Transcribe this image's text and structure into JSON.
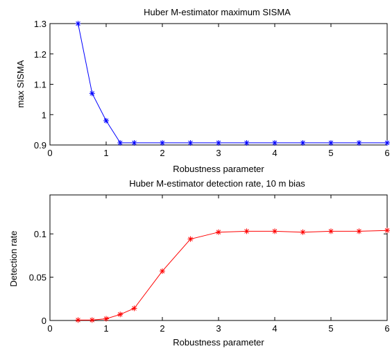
{
  "chart_data": [
    {
      "type": "line",
      "title": "Huber M-estimator maximum SISMA",
      "xlabel": "Robustness parameter",
      "ylabel": "max SISMA",
      "xlim": [
        0,
        6
      ],
      "ylim": [
        0.9,
        1.3
      ],
      "xticks": [
        0,
        1,
        2,
        3,
        4,
        5,
        6
      ],
      "yticks": [
        0.9,
        1.0,
        1.1,
        1.2,
        1.3
      ],
      "xtick_labels": [
        "0",
        "1",
        "2",
        "3",
        "4",
        "5",
        "6"
      ],
      "ytick_labels": [
        "0.9",
        "1",
        "1.1",
        "1.2",
        "1.3"
      ],
      "grid": false,
      "series": [
        {
          "color": "#0000ff",
          "marker": "asterisk",
          "x": [
            0.5,
            0.75,
            1.0,
            1.25,
            1.5,
            2.0,
            2.5,
            3.0,
            3.5,
            4.0,
            4.5,
            5.0,
            5.5,
            6.0
          ],
          "y": [
            1.3,
            1.07,
            0.98,
            0.907,
            0.907,
            0.907,
            0.907,
            0.907,
            0.907,
            0.907,
            0.907,
            0.907,
            0.907,
            0.907
          ]
        }
      ]
    },
    {
      "type": "line",
      "title": "Huber M-estimator detection rate, 10 m bias",
      "xlabel": "Robustness parameter",
      "ylabel": "Detection rate",
      "xlim": [
        0,
        6
      ],
      "ylim": [
        0,
        0.145
      ],
      "xticks": [
        0,
        1,
        2,
        3,
        4,
        5,
        6
      ],
      "yticks": [
        0,
        0.05,
        0.1
      ],
      "xtick_labels": [
        "0",
        "1",
        "2",
        "3",
        "4",
        "5",
        "6"
      ],
      "ytick_labels": [
        "0",
        "0.05",
        "0.1"
      ],
      "grid": false,
      "series": [
        {
          "color": "#ff0000",
          "marker": "asterisk",
          "x": [
            0.5,
            0.75,
            1.0,
            1.25,
            1.5,
            2.0,
            2.5,
            3.0,
            3.5,
            4.0,
            4.5,
            5.0,
            5.5,
            6.0
          ],
          "y": [
            0.0005,
            0.0005,
            0.002,
            0.007,
            0.014,
            0.057,
            0.094,
            0.102,
            0.103,
            0.103,
            0.102,
            0.103,
            0.103,
            0.104
          ]
        }
      ]
    }
  ]
}
